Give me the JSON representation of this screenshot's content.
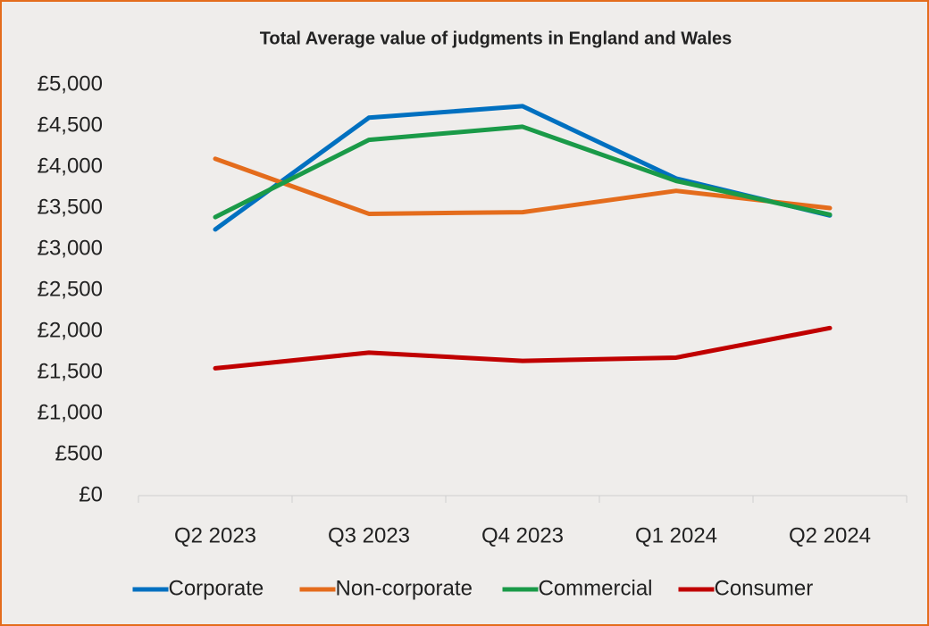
{
  "chart_data": {
    "type": "line",
    "title": "Total Average value of judgments in England and Wales",
    "categories": [
      "Q2 2023",
      "Q3 2023",
      "Q4 2023",
      "Q1 2024",
      "Q2 2024"
    ],
    "series": [
      {
        "name": "Corporate",
        "color": "#0070c0",
        "values": [
          3240,
          4600,
          4740,
          3860,
          3410
        ]
      },
      {
        "name": "Non-corporate",
        "color": "#e46c1c",
        "values": [
          4100,
          3430,
          3450,
          3710,
          3500
        ]
      },
      {
        "name": "Commercial",
        "color": "#1a9a48",
        "values": [
          3390,
          4330,
          4490,
          3830,
          3420
        ]
      },
      {
        "name": "Consumer",
        "color": "#c00000",
        "values": [
          1550,
          1740,
          1640,
          1680,
          2040
        ]
      }
    ],
    "ylim": [
      0,
      5000
    ],
    "yticks": [
      {
        "value": 0,
        "label": "£0"
      },
      {
        "value": 500,
        "label": "£500"
      },
      {
        "value": 1000,
        "label": "£1,000"
      },
      {
        "value": 1500,
        "label": "£1,500"
      },
      {
        "value": 2000,
        "label": "£2,000"
      },
      {
        "value": 2500,
        "label": "£2,500"
      },
      {
        "value": 3000,
        "label": "£3,000"
      },
      {
        "value": 3500,
        "label": "£3,500"
      },
      {
        "value": 4000,
        "label": "£4,000"
      },
      {
        "value": 4500,
        "label": "£4,500"
      },
      {
        "value": 5000,
        "label": "£5,000"
      }
    ],
    "grid": false,
    "legend": "bottom"
  }
}
